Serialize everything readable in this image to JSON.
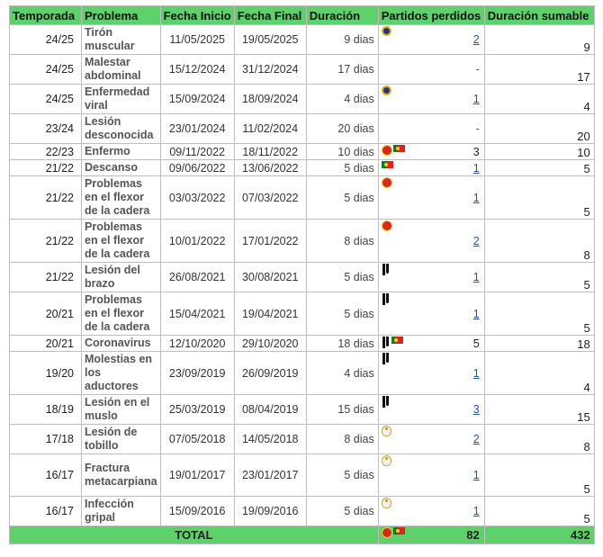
{
  "headers": {
    "season": "Temporada",
    "problem": "Problema",
    "start": "Fecha Inicio",
    "end": "Fecha Final",
    "duration": "Duración",
    "lost": "Partidos perdidos",
    "summable": "Duración sumable"
  },
  "rows": [
    {
      "season": "24/25",
      "problem": "Tirón muscular",
      "start": "11/05/2025",
      "end": "19/05/2025",
      "duration": "9 dias",
      "lost": "2",
      "summable": "9",
      "icons": [
        "nassr"
      ]
    },
    {
      "season": "24/25",
      "problem": "Malestar abdominal",
      "start": "15/12/2024",
      "end": "31/12/2024",
      "duration": "17 dias",
      "lost": "-",
      "summable": "17",
      "icons": []
    },
    {
      "season": "24/25",
      "problem": "Enfermedad viral",
      "start": "15/09/2024",
      "end": "18/09/2024",
      "duration": "4 dias",
      "lost": "1",
      "summable": "4",
      "icons": [
        "nassr"
      ]
    },
    {
      "season": "23/24",
      "problem": "Lesión desconocida",
      "start": "23/01/2024",
      "end": "11/02/2024",
      "duration": "20 dias",
      "lost": "-",
      "summable": "20",
      "icons": []
    },
    {
      "season": "22/23",
      "problem": "Enfermo",
      "start": "09/11/2022",
      "end": "18/11/2022",
      "duration": "10 dias",
      "lost": "3",
      "summable": "10",
      "icons": [
        "manu",
        "portugal"
      ]
    },
    {
      "season": "21/22",
      "problem": "Descanso",
      "start": "09/06/2022",
      "end": "13/06/2022",
      "duration": "5 dias",
      "lost": "1",
      "summable": "5",
      "icons": [
        "portugal"
      ]
    },
    {
      "season": "21/22",
      "problem": "Problemas en el flexor de la cadera",
      "start": "03/03/2022",
      "end": "07/03/2022",
      "duration": "5 dias",
      "lost": "1",
      "summable": "5",
      "icons": [
        "manu"
      ]
    },
    {
      "season": "21/22",
      "problem": "Problemas en el flexor de la cadera",
      "start": "10/01/2022",
      "end": "17/01/2022",
      "duration": "8 dias",
      "lost": "2",
      "summable": "8",
      "icons": [
        "manu"
      ]
    },
    {
      "season": "21/22",
      "problem": "Lesión del brazo",
      "start": "26/08/2021",
      "end": "30/08/2021",
      "duration": "5 dias",
      "lost": "1",
      "summable": "5",
      "icons": [
        "juve"
      ]
    },
    {
      "season": "20/21",
      "problem": "Problemas en el flexor de la cadera",
      "start": "15/04/2021",
      "end": "19/04/2021",
      "duration": "5 dias",
      "lost": "1",
      "summable": "5",
      "icons": [
        "juve"
      ]
    },
    {
      "season": "20/21",
      "problem": "Coronavirus",
      "start": "12/10/2020",
      "end": "29/10/2020",
      "duration": "18 dias",
      "lost": "5",
      "summable": "18",
      "icons": [
        "juve",
        "portugal"
      ]
    },
    {
      "season": "19/20",
      "problem": "Molestias en los aductores",
      "start": "23/09/2019",
      "end": "26/09/2019",
      "duration": "4 dias",
      "lost": "1",
      "summable": "4",
      "icons": [
        "juve"
      ]
    },
    {
      "season": "18/19",
      "problem": "Lesión en el muslo",
      "start": "25/03/2019",
      "end": "08/04/2019",
      "duration": "15 dias",
      "lost": "3",
      "summable": "15",
      "icons": [
        "juve"
      ]
    },
    {
      "season": "17/18",
      "problem": "Lesión de tobillo",
      "start": "07/05/2018",
      "end": "14/05/2018",
      "duration": "8 dias",
      "lost": "2",
      "summable": "8",
      "icons": [
        "madrid"
      ]
    },
    {
      "season": "16/17",
      "problem": "Fractura metacarpiana",
      "start": "19/01/2017",
      "end": "23/01/2017",
      "duration": "5 dias",
      "lost": "1",
      "summable": "5",
      "icons": [
        "madrid"
      ]
    },
    {
      "season": "16/17",
      "problem": "Infección gripal",
      "start": "15/09/2016",
      "end": "19/09/2016",
      "duration": "5 dias",
      "lost": "1",
      "summable": "5",
      "icons": [
        "madrid"
      ]
    }
  ],
  "row_link_style": [
    "link",
    "dash",
    "link",
    "dash",
    "plain",
    "link",
    "link",
    "link",
    "link",
    "link",
    "plain",
    "link",
    "link",
    "link",
    "link",
    "link"
  ],
  "row_heights": [
    30,
    31,
    31,
    31,
    18,
    18,
    47,
    47,
    31,
    47,
    18,
    47,
    31,
    31,
    47,
    31
  ],
  "total": {
    "label": "TOTAL",
    "lost": "82",
    "summable": "432",
    "icons": [
      "manu",
      "portugal"
    ]
  },
  "colors": {
    "header_green": "#5ed16b",
    "link_blue": "#2456a6",
    "grid": "#bfbfbf"
  }
}
